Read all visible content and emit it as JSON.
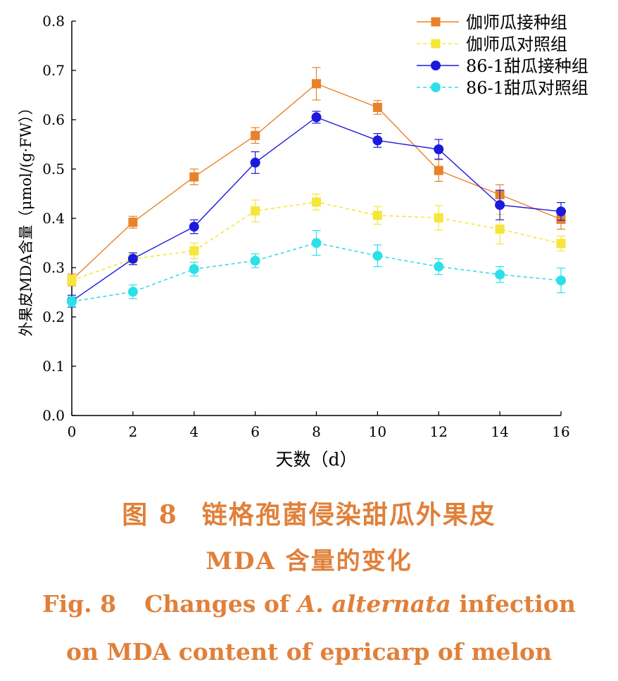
{
  "chart_data": {
    "type": "line",
    "xlabel": "天数（d）",
    "ylabel": "外果皮MDA含量（μmol/(g·FW））",
    "xlim": [
      0,
      16
    ],
    "ylim": [
      0,
      0.8
    ],
    "x_ticks": [
      "0",
      "2",
      "4",
      "6",
      "8",
      "10",
      "12",
      "14",
      "16"
    ],
    "y_ticks": [
      "0.0",
      "0.1",
      "0.2",
      "0.3",
      "0.4",
      "0.5",
      "0.6",
      "0.7",
      "0.8"
    ],
    "x": [
      0,
      2,
      4,
      6,
      8,
      10,
      12,
      14,
      16
    ],
    "grid": false,
    "legend_position": "top-right",
    "series": [
      {
        "name": "伽师瓜接种组",
        "marker": "square",
        "color": "#e8822a",
        "line": "solid",
        "values": [
          0.275,
          0.392,
          0.484,
          0.568,
          0.673,
          0.625,
          0.497,
          0.448,
          0.398
        ],
        "errors": [
          0.012,
          0.012,
          0.016,
          0.016,
          0.033,
          0.014,
          0.022,
          0.02,
          0.02
        ]
      },
      {
        "name": "伽师瓜对照组",
        "marker": "square",
        "color": "#f5e63a",
        "line": "dashed",
        "values": [
          0.274,
          0.318,
          0.334,
          0.415,
          0.433,
          0.406,
          0.401,
          0.378,
          0.349
        ],
        "errors": [
          0.01,
          0.012,
          0.016,
          0.022,
          0.016,
          0.018,
          0.025,
          0.03,
          0.015
        ]
      },
      {
        "name": "86-1甜瓜接种组",
        "marker": "circle",
        "color": "#1a1adc",
        "line": "solid",
        "values": [
          0.232,
          0.318,
          0.383,
          0.513,
          0.605,
          0.558,
          0.54,
          0.427,
          0.414
        ],
        "errors": [
          0.012,
          0.012,
          0.014,
          0.022,
          0.012,
          0.014,
          0.02,
          0.03,
          0.018
        ]
      },
      {
        "name": "86-1甜瓜对照组",
        "marker": "circle",
        "color": "#2de0e8",
        "line": "dashed",
        "values": [
          0.231,
          0.251,
          0.297,
          0.314,
          0.35,
          0.324,
          0.302,
          0.286,
          0.274
        ],
        "errors": [
          0.01,
          0.014,
          0.014,
          0.014,
          0.025,
          0.022,
          0.016,
          0.016,
          0.025
        ]
      }
    ]
  },
  "caption": {
    "cn_fig": "图 8",
    "cn_line1": "链格孢菌侵染甜瓜外果皮",
    "cn_line2": "MDA 含量的变化",
    "en_fig": "Fig. 8",
    "en_pre": "Changes of",
    "en_species": "A. alternata",
    "en_post": "infection",
    "en_line2": "on MDA content of epricarp of melon"
  }
}
